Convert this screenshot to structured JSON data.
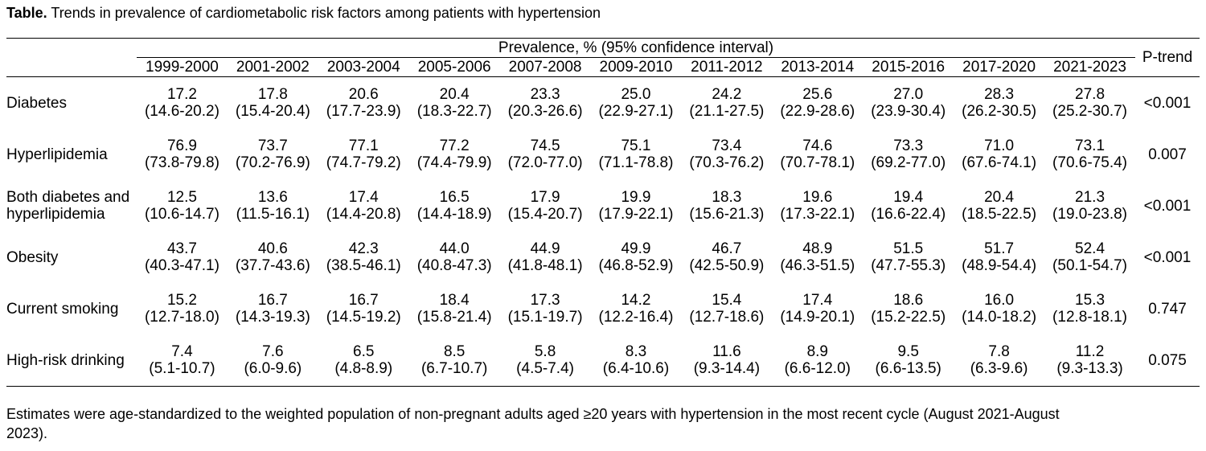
{
  "title": {
    "bold_label": "Table.",
    "text": " Trends in prevalence of cardiometabolic risk factors among patients with hypertension"
  },
  "table": {
    "spanning_header": "Prevalence, % (95% confidence interval)",
    "p_trend_header": "P-trend",
    "year_columns": [
      "1999-2000",
      "2001-2002",
      "2003-2004",
      "2005-2006",
      "2007-2008",
      "2009-2010",
      "2011-2012",
      "2013-2014",
      "2015-2016",
      "2017-2020",
      "2021-2023"
    ],
    "rows": [
      {
        "label": "Diabetes",
        "cells": [
          {
            "value": "17.2",
            "ci": "(14.6-20.2)"
          },
          {
            "value": "17.8",
            "ci": "(15.4-20.4)"
          },
          {
            "value": "20.6",
            "ci": "(17.7-23.9)"
          },
          {
            "value": "20.4",
            "ci": "(18.3-22.7)"
          },
          {
            "value": "23.3",
            "ci": "(20.3-26.6)"
          },
          {
            "value": "25.0",
            "ci": "(22.9-27.1)"
          },
          {
            "value": "24.2",
            "ci": "(21.1-27.5)"
          },
          {
            "value": "25.6",
            "ci": "(22.9-28.6)"
          },
          {
            "value": "27.0",
            "ci": "(23.9-30.4)"
          },
          {
            "value": "28.3",
            "ci": "(26.2-30.5)"
          },
          {
            "value": "27.8",
            "ci": "(25.2-30.7)"
          }
        ],
        "p_trend": "<0.001"
      },
      {
        "label": "Hyperlipidemia",
        "cells": [
          {
            "value": "76.9",
            "ci": "(73.8-79.8)"
          },
          {
            "value": "73.7",
            "ci": "(70.2-76.9)"
          },
          {
            "value": "77.1",
            "ci": "(74.7-79.2)"
          },
          {
            "value": "77.2",
            "ci": "(74.4-79.9)"
          },
          {
            "value": "74.5",
            "ci": "(72.0-77.0)"
          },
          {
            "value": "75.1",
            "ci": "(71.1-78.8)"
          },
          {
            "value": "73.4",
            "ci": "(70.3-76.2)"
          },
          {
            "value": "74.6",
            "ci": "(70.7-78.1)"
          },
          {
            "value": "73.3",
            "ci": "(69.2-77.0)"
          },
          {
            "value": "71.0",
            "ci": "(67.6-74.1)"
          },
          {
            "value": "73.1",
            "ci": "(70.6-75.4)"
          }
        ],
        "p_trend": "0.007"
      },
      {
        "label": "Both diabetes and hyperlipidemia",
        "cells": [
          {
            "value": "12.5",
            "ci": "(10.6-14.7)"
          },
          {
            "value": "13.6",
            "ci": "(11.5-16.1)"
          },
          {
            "value": "17.4",
            "ci": "(14.4-20.8)"
          },
          {
            "value": "16.5",
            "ci": "(14.4-18.9)"
          },
          {
            "value": "17.9",
            "ci": "(15.4-20.7)"
          },
          {
            "value": "19.9",
            "ci": "(17.9-22.1)"
          },
          {
            "value": "18.3",
            "ci": "(15.6-21.3)"
          },
          {
            "value": "19.6",
            "ci": "(17.3-22.1)"
          },
          {
            "value": "19.4",
            "ci": "(16.6-22.4)"
          },
          {
            "value": "20.4",
            "ci": "(18.5-22.5)"
          },
          {
            "value": "21.3",
            "ci": "(19.0-23.8)"
          }
        ],
        "p_trend": "<0.001"
      },
      {
        "label": "Obesity",
        "cells": [
          {
            "value": "43.7",
            "ci": "(40.3-47.1)"
          },
          {
            "value": "40.6",
            "ci": "(37.7-43.6)"
          },
          {
            "value": "42.3",
            "ci": "(38.5-46.1)"
          },
          {
            "value": "44.0",
            "ci": "(40.8-47.3)"
          },
          {
            "value": "44.9",
            "ci": "(41.8-48.1)"
          },
          {
            "value": "49.9",
            "ci": "(46.8-52.9)"
          },
          {
            "value": "46.7",
            "ci": "(42.5-50.9)"
          },
          {
            "value": "48.9",
            "ci": "(46.3-51.5)"
          },
          {
            "value": "51.5",
            "ci": "(47.7-55.3)"
          },
          {
            "value": "51.7",
            "ci": "(48.9-54.4)"
          },
          {
            "value": "52.4",
            "ci": "(50.1-54.7)"
          }
        ],
        "p_trend": "<0.001"
      },
      {
        "label": "Current smoking",
        "cells": [
          {
            "value": "15.2",
            "ci": "(12.7-18.0)"
          },
          {
            "value": "16.7",
            "ci": "(14.3-19.3)"
          },
          {
            "value": "16.7",
            "ci": "(14.5-19.2)"
          },
          {
            "value": "18.4",
            "ci": "(15.8-21.4)"
          },
          {
            "value": "17.3",
            "ci": "(15.1-19.7)"
          },
          {
            "value": "14.2",
            "ci": "(12.2-16.4)"
          },
          {
            "value": "15.4",
            "ci": "(12.7-18.6)"
          },
          {
            "value": "17.4",
            "ci": "(14.9-20.1)"
          },
          {
            "value": "18.6",
            "ci": "(15.2-22.5)"
          },
          {
            "value": "16.0",
            "ci": "(14.0-18.2)"
          },
          {
            "value": "15.3",
            "ci": "(12.8-18.1)"
          }
        ],
        "p_trend": "0.747"
      },
      {
        "label": "High-risk drinking",
        "cells": [
          {
            "value": "7.4",
            "ci": "(5.1-10.7)"
          },
          {
            "value": "7.6",
            "ci": "(6.0-9.6)"
          },
          {
            "value": "6.5",
            "ci": "(4.8-8.9)"
          },
          {
            "value": "8.5",
            "ci": "(6.7-10.7)"
          },
          {
            "value": "5.8",
            "ci": "(4.5-7.4)"
          },
          {
            "value": "8.3",
            "ci": "(6.4-10.6)"
          },
          {
            "value": "11.6",
            "ci": "(9.3-14.4)"
          },
          {
            "value": "8.9",
            "ci": "(6.6-12.0)"
          },
          {
            "value": "9.5",
            "ci": "(6.6-13.5)"
          },
          {
            "value": "7.8",
            "ci": "(6.3-9.6)"
          },
          {
            "value": "11.2",
            "ci": "(9.3-13.3)"
          }
        ],
        "p_trend": "0.075"
      }
    ]
  },
  "footnote": "Estimates were age-standardized to the weighted population of non-pregnant adults aged ≥20 years with hypertension in the most recent cycle (August 2021-August 2023)."
}
